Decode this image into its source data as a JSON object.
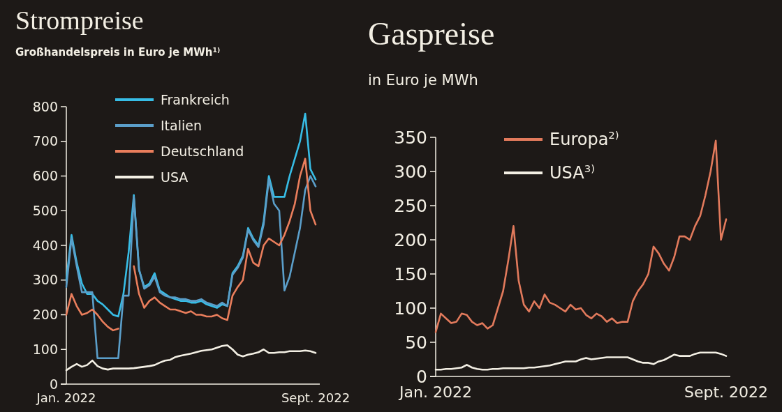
{
  "chart_data": [
    {
      "type": "line",
      "title": "Strompreise",
      "subtitle": "Großhandelspreis in Euro je MWh$^{1)}$",
      "categories": [
        "Jan. 2022",
        null,
        null,
        null,
        null,
        null,
        null,
        null,
        null,
        null,
        null,
        null,
        null,
        null,
        null,
        null,
        null,
        null,
        null,
        null,
        null,
        null,
        null,
        null,
        null,
        null,
        null,
        null,
        null,
        null,
        null,
        null,
        null,
        null,
        null,
        null,
        null,
        null,
        null,
        null,
        null,
        null,
        null,
        null,
        null,
        null,
        null,
        null,
        "Sept. 2022"
      ],
      "ylim": [
        0,
        800
      ],
      "yticks": [
        0,
        100,
        200,
        300,
        400,
        500,
        600,
        700,
        800
      ],
      "legend": "top",
      "grid": false,
      "series": [
        {
          "name": "Frankreich",
          "color": "#37bde6",
          "values": [
            300,
            430,
            350,
            290,
            260,
            260,
            240,
            230,
            215,
            200,
            195,
            260,
            380,
            545,
            330,
            280,
            290,
            320,
            270,
            260,
            250,
            245,
            240,
            240,
            235,
            235,
            240,
            230,
            225,
            220,
            230,
            225,
            320,
            340,
            370,
            450,
            420,
            400,
            470,
            600,
            540,
            540,
            540,
            600,
            650,
            700,
            780,
            620,
            590
          ]
        },
        {
          "name": "Italien",
          "color": "#5b9ec9",
          "values": [
            280,
            420,
            340,
            265,
            265,
            265,
            75,
            75,
            75,
            75,
            75,
            255,
            255,
            540,
            330,
            275,
            285,
            310,
            265,
            255,
            250,
            250,
            245,
            245,
            240,
            240,
            245,
            235,
            230,
            225,
            235,
            225,
            315,
            335,
            365,
            445,
            415,
            395,
            460,
            590,
            520,
            500,
            270,
            310,
            380,
            450,
            560,
            600,
            570
          ]
        },
        {
          "name": "Deutschland",
          "color": "#ea7e5c",
          "values": [
            200,
            260,
            225,
            200,
            205,
            215,
            200,
            180,
            165,
            155,
            160,
            null,
            null,
            340,
            260,
            220,
            240,
            250,
            235,
            225,
            215,
            215,
            210,
            205,
            210,
            200,
            200,
            195,
            195,
            200,
            190,
            185,
            255,
            280,
            300,
            390,
            350,
            340,
            400,
            420,
            410,
            400,
            430,
            470,
            520,
            600,
            650,
            500,
            460
          ]
        },
        {
          "name": "USA",
          "color": "#f3efe4",
          "values": [
            40,
            50,
            58,
            50,
            55,
            68,
            52,
            45,
            42,
            45,
            45,
            45,
            45,
            46,
            48,
            50,
            52,
            55,
            62,
            68,
            70,
            78,
            82,
            85,
            88,
            92,
            96,
            98,
            100,
            105,
            110,
            112,
            100,
            85,
            80,
            85,
            88,
            92,
            100,
            90,
            90,
            92,
            92,
            95,
            95,
            95,
            97,
            95,
            90
          ]
        }
      ]
    },
    {
      "type": "line",
      "title": "Gaspreise",
      "subtitle": "in Euro je MWh",
      "categories": [
        "Jan. 2022",
        null,
        null,
        null,
        null,
        null,
        null,
        null,
        null,
        null,
        null,
        null,
        null,
        null,
        null,
        null,
        null,
        null,
        null,
        null,
        null,
        null,
        null,
        null,
        null,
        null,
        null,
        null,
        null,
        null,
        null,
        null,
        null,
        null,
        null,
        null,
        null,
        null,
        null,
        null,
        null,
        null,
        null,
        null,
        null,
        null,
        null,
        null,
        null,
        null,
        null,
        null,
        null,
        null,
        null,
        null,
        "Sept. 2022"
      ],
      "ylim": [
        0,
        350
      ],
      "yticks": [
        0,
        50,
        100,
        150,
        200,
        250,
        300,
        350
      ],
      "legend": "top",
      "grid": false,
      "series": [
        {
          "name": "Europa$^{2)}$",
          "color": "#e27a5c",
          "values": [
            65,
            92,
            85,
            78,
            80,
            92,
            90,
            80,
            75,
            78,
            70,
            75,
            100,
            125,
            170,
            220,
            140,
            105,
            95,
            110,
            100,
            120,
            108,
            105,
            100,
            95,
            105,
            98,
            100,
            90,
            85,
            92,
            88,
            80,
            85,
            78,
            80,
            80,
            110,
            125,
            135,
            150,
            190,
            180,
            165,
            155,
            175,
            205,
            205,
            200,
            220,
            235,
            265,
            300,
            345,
            200,
            230
          ]
        },
        {
          "name": "USA$^{3)}$",
          "color": "#f3efe4",
          "values": [
            10,
            10,
            11,
            11,
            12,
            13,
            17,
            13,
            11,
            10,
            10,
            11,
            11,
            12,
            12,
            12,
            12,
            12,
            13,
            13,
            14,
            15,
            16,
            18,
            20,
            22,
            22,
            22,
            25,
            27,
            25,
            26,
            27,
            28,
            28,
            28,
            28,
            28,
            25,
            22,
            20,
            20,
            18,
            22,
            24,
            28,
            32,
            30,
            30,
            30,
            33,
            35,
            35,
            35,
            35,
            33,
            30
          ]
        }
      ]
    }
  ]
}
